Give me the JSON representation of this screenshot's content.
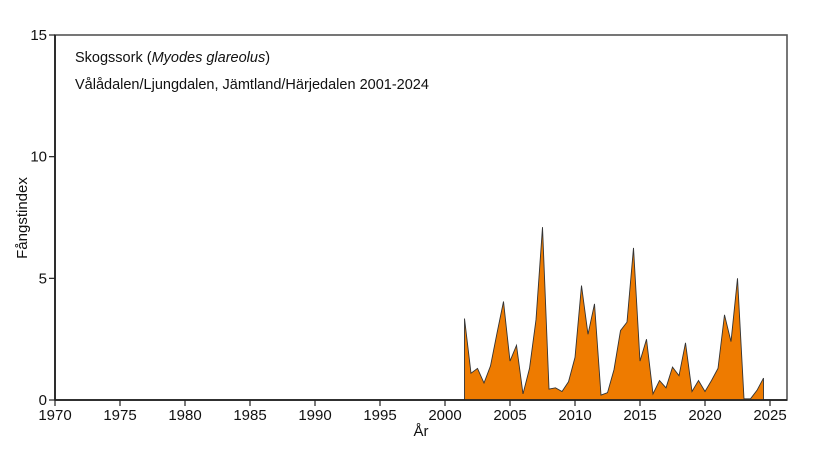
{
  "chart_data": {
    "type": "area",
    "title": "Skogssork (Myodes glareolus)",
    "title_parts": {
      "common": "Skogssork",
      "latin": "Myodes glareolus"
    },
    "subtitle": "Vålådalen/Ljungdalen, Jämtland/Härjedalen 2001-2024",
    "xlabel": "År",
    "ylabel": "Fångstindex",
    "xlim": [
      1970,
      2026.5
    ],
    "ylim": [
      0,
      15
    ],
    "xticks": [
      1970,
      1975,
      1980,
      1985,
      1990,
      1995,
      2000,
      2005,
      2010,
      2015,
      2020,
      2025
    ],
    "yticks": [
      0,
      5,
      10,
      15
    ],
    "grid": false,
    "legend": null,
    "fill_color": "#EE7B00",
    "stroke_color": "#333333",
    "series": [
      {
        "name": "Fångstindex",
        "x": [
          2001.5,
          2002,
          2002.5,
          2003,
          2003.5,
          2004,
          2004.5,
          2005,
          2005.5,
          2006,
          2006.5,
          2007,
          2007.5,
          2008,
          2008.5,
          2009,
          2009.5,
          2010,
          2010.5,
          2011,
          2011.5,
          2012,
          2012.5,
          2013,
          2013.5,
          2014,
          2014.5,
          2015,
          2015.5,
          2016,
          2016.5,
          2017,
          2017.5,
          2018,
          2018.5,
          2019,
          2019.5,
          2020,
          2020.5,
          2021,
          2021.5,
          2022,
          2022.5,
          2023,
          2023.5,
          2024,
          2024.5
        ],
        "values": [
          3.35,
          1.1,
          1.3,
          0.7,
          1.4,
          2.75,
          4.05,
          1.6,
          2.25,
          0.25,
          1.3,
          3.3,
          7.1,
          0.45,
          0.5,
          0.35,
          0.75,
          1.75,
          4.7,
          2.7,
          3.95,
          0.2,
          0.3,
          1.25,
          2.85,
          3.2,
          6.25,
          1.6,
          2.5,
          0.25,
          0.8,
          0.5,
          1.35,
          1.0,
          2.35,
          0.35,
          0.8,
          0.35,
          0.8,
          1.3,
          3.5,
          2.4,
          5.0,
          0.05,
          0.05,
          0.4,
          0.9
        ]
      }
    ]
  }
}
